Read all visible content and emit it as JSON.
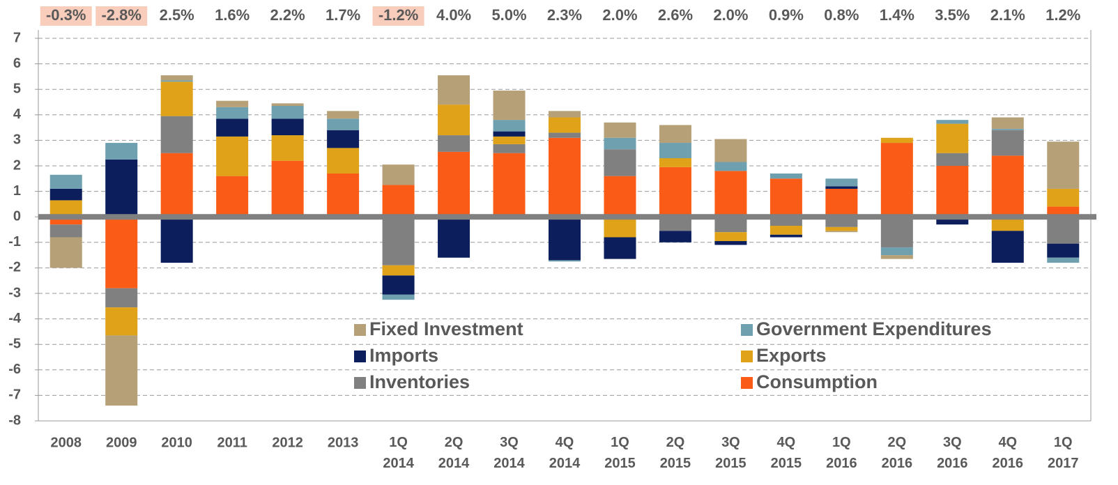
{
  "chart_data": {
    "type": "stacked_bar",
    "categories": [
      "2008",
      "2009",
      "2010",
      "2011",
      "2012",
      "2013",
      "1Q 2014",
      "2Q 2014",
      "3Q 2014",
      "4Q 2014",
      "1Q 2015",
      "2Q 2015",
      "3Q 2015",
      "4Q 2015",
      "1Q 2016",
      "2Q 2016",
      "3Q 2016",
      "4Q 2016",
      "1Q 2017"
    ],
    "series": [
      {
        "name": "Consumption",
        "color": "#fa5c17",
        "values": [
          -0.3,
          -2.8,
          2.5,
          1.6,
          2.2,
          1.7,
          1.25,
          2.55,
          2.5,
          3.1,
          1.6,
          1.95,
          1.8,
          1.5,
          1.1,
          2.9,
          2.0,
          2.4,
          0.4
        ]
      },
      {
        "name": "Inventories",
        "color": "#808080",
        "values": [
          -0.5,
          -0.75,
          1.45,
          0,
          0,
          0,
          -1.9,
          0.65,
          0.35,
          0.2,
          1.05,
          -0.55,
          -0.6,
          -0.35,
          -0.4,
          -1.2,
          0.5,
          1.0,
          -1.05
        ]
      },
      {
        "name": "Exports",
        "color": "#e0a218",
        "values": [
          0.65,
          -1.1,
          1.35,
          1.55,
          1.0,
          1.0,
          -0.4,
          1.2,
          0.3,
          0.6,
          -0.8,
          0.35,
          -0.35,
          -0.35,
          -0.15,
          0.2,
          1.15,
          -0.55,
          0.7
        ]
      },
      {
        "name": "Imports",
        "color": "#0c1f5c",
        "values": [
          0.45,
          2.25,
          -1.8,
          0.7,
          0.65,
          0.7,
          -0.75,
          -1.6,
          0.2,
          -1.7,
          -0.85,
          -0.45,
          -0.15,
          -0.1,
          0.1,
          0,
          -0.3,
          -1.25,
          -0.55
        ]
      },
      {
        "name": "Government Expenditures",
        "color": "#6fa0b0",
        "values": [
          0.55,
          0.65,
          0.05,
          0.45,
          0.5,
          0.45,
          -0.2,
          0,
          0.45,
          -0.05,
          0.45,
          0.6,
          0.35,
          0.2,
          0.3,
          -0.3,
          0.15,
          0.05,
          -0.2
        ]
      },
      {
        "name": "Fixed Investment",
        "color": "#b5a077",
        "values": [
          -1.2,
          -2.75,
          0.2,
          0.25,
          0.1,
          0.3,
          0.8,
          1.15,
          1.15,
          0.25,
          0.6,
          0.7,
          0.9,
          0,
          -0.05,
          -0.15,
          0,
          0.45,
          1.85
        ]
      }
    ],
    "gdp": {
      "values": [
        -0.3,
        -2.8,
        2.5,
        1.6,
        2.2,
        1.7,
        -1.2,
        4.0,
        5.0,
        2.3,
        2.0,
        2.6,
        2.0,
        0.9,
        0.8,
        1.4,
        3.5,
        2.1,
        1.2
      ],
      "value_labels": [
        "-0.3%",
        "-2.8%",
        "2.5%",
        "1.6%",
        "2.2%",
        "1.7%",
        "-1.2%",
        "4.0%",
        "5.0%",
        "2.3%",
        "2.0%",
        "2.6%",
        "2.0%",
        "0.9%",
        "0.8%",
        "1.4%",
        "3.5%",
        "2.1%",
        "1.2%"
      ]
    },
    "ylim": [
      -8,
      7
    ],
    "yticks": [
      -8,
      -7,
      -6,
      -5,
      -4,
      -3,
      -2,
      -1,
      0,
      1,
      2,
      3,
      4,
      5,
      6,
      7
    ],
    "grid": true,
    "legend": "bottom-right"
  }
}
